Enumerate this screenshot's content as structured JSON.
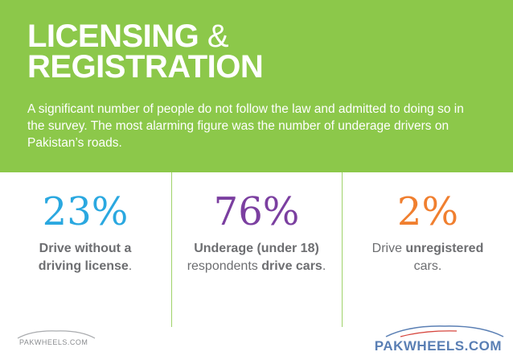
{
  "header": {
    "title_line1_bold": "LICENSING",
    "title_line1_amp": " &",
    "title_line2": "REGISTRATION",
    "intro": "A significant number of people do not follow the law and admitted to doing so in the survey. The most alarming figure was the number of underage drivers on Pakistan’s roads."
  },
  "stats": [
    {
      "value": "23%",
      "color": "#2aa8e0",
      "caption_parts": [
        "Drive without a",
        "driving license",
        "."
      ]
    },
    {
      "value": "76%",
      "color": "#7b3fa0",
      "caption_parts": [
        "Underage (under 18)",
        "respondents ",
        "drive cars",
        "."
      ]
    },
    {
      "value": "2%",
      "color": "#f07f2f",
      "caption_parts": [
        "Drive ",
        "unregistered",
        "cars."
      ]
    }
  ],
  "footer": {
    "logo_left": "PAKWHEELS.COM",
    "logo_right": "PAKWHEELS.COM"
  },
  "colors": {
    "hero_bg": "#8cc84a",
    "caption_text": "#6d6e71"
  }
}
